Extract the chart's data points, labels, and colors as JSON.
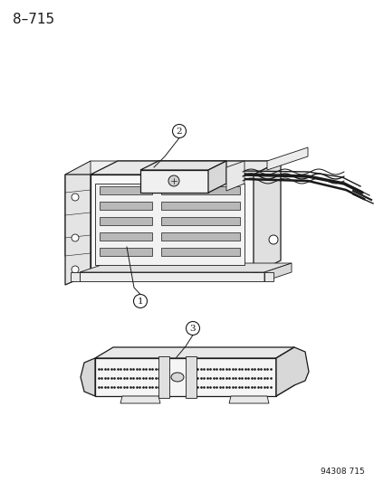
{
  "page_number": "8–715",
  "watermark": "94308 715",
  "bg_color": "#ffffff",
  "line_color": "#1a1a1a",
  "callout_labels": [
    "1",
    "2",
    "3"
  ],
  "page_num_fontsize": 11,
  "watermark_fontsize": 6.5,
  "callout_fontsize": 7.5
}
